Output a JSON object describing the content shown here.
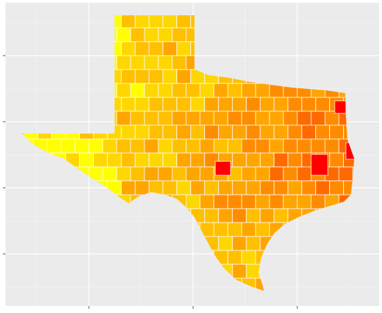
{
  "chart_data": {
    "type": "map",
    "grid": true,
    "colors": [
      "#ffff00",
      "#ffd700",
      "#ffc000",
      "#ffa500",
      "#ff8c00",
      "#ff6a00",
      "#ff0000"
    ]
  }
}
